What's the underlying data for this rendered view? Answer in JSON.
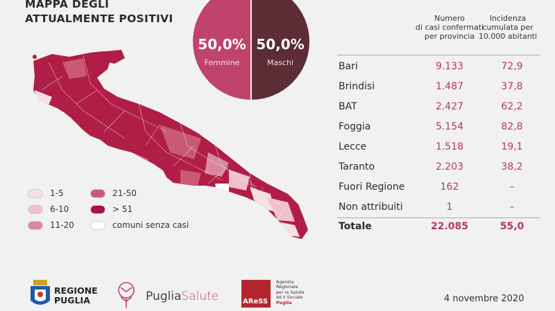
{
  "title": {
    "line1": "MAPPA DEGLI",
    "line2": "ATTUALMENTE POSITIVI"
  },
  "gender": {
    "female": {
      "pct": "50,0%",
      "label": "Femmine",
      "color": "#c0436b"
    },
    "male": {
      "pct": "50,0%",
      "label": "Maschi",
      "color": "#5c2d35"
    }
  },
  "legend": [
    {
      "label": "1-5",
      "color": "#f6dfe3"
    },
    {
      "label": "6-10",
      "color": "#f0c0cb"
    },
    {
      "label": "11-20",
      "color": "#d9899f"
    },
    {
      "label": "21-50",
      "color": "#c85a78"
    },
    {
      "label": "> 51",
      "color": "#a8173d"
    },
    {
      "label": "comuni senza casi",
      "color": "#ffffff"
    }
  ],
  "table": {
    "col_cases": [
      "Numero",
      "di casi confermati",
      "per provincia"
    ],
    "col_incidence": [
      "Incidenza",
      "cumulata per",
      "10.000 abitanti"
    ],
    "rows": [
      {
        "name": "Bari",
        "cases": "9.133",
        "incidence": "72,9"
      },
      {
        "name": "Brindisi",
        "cases": "1.487",
        "incidence": "37,8"
      },
      {
        "name": "BAT",
        "cases": "2.427",
        "incidence": "62,2"
      },
      {
        "name": "Foggia",
        "cases": "5.154",
        "incidence": "82,8"
      },
      {
        "name": "Lecce",
        "cases": "1.518",
        "incidence": "19,1"
      },
      {
        "name": "Taranto",
        "cases": "2.203",
        "incidence": "38,2"
      },
      {
        "name": "Fuori Regione",
        "cases": "162",
        "incidence": "–"
      },
      {
        "name": "Non attribuiti",
        "cases": "1",
        "incidence": "–"
      }
    ],
    "total": {
      "name": "Totale",
      "cases": "22.085",
      "incidence": "55,0"
    }
  },
  "footer": {
    "regione": [
      "REGIONE",
      "PUGLIA"
    ],
    "puglia_salute": {
      "part1": "Puglia",
      "part2": "Salute"
    },
    "aress": {
      "acronym": "AReSS",
      "text": [
        "Agenzia",
        "Regionale",
        "per la Salute",
        "ed il Sociale",
        "Puglia"
      ]
    },
    "date": "4 novembre 2020"
  }
}
